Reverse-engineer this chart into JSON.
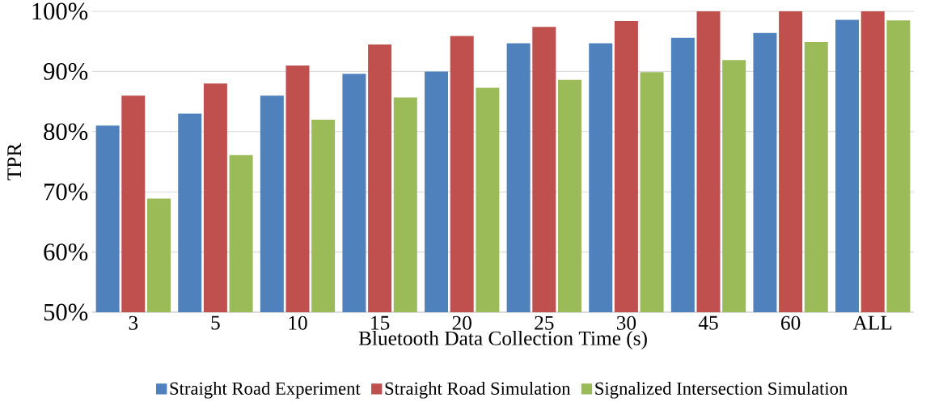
{
  "chart_data": {
    "type": "bar",
    "xlabel": "Bluetooth Data Collection Time (s)",
    "ylabel": "TPR",
    "categories": [
      "3",
      "5",
      "10",
      "15",
      "20",
      "25",
      "30",
      "45",
      "60",
      "ALL"
    ],
    "series": [
      {
        "name": "Straight Road Experiment",
        "color": "#4f81bd",
        "values": [
          81,
          83,
          86,
          89.6,
          90,
          94.7,
          94.7,
          95.6,
          96.4,
          98.6
        ]
      },
      {
        "name": "Straight Road Simulation",
        "color": "#c0504d",
        "values": [
          86,
          88,
          91,
          94.5,
          95.9,
          97.4,
          98.4,
          100,
          100,
          100
        ]
      },
      {
        "name": "Signalized Intersection Simulation",
        "color": "#9bbb59",
        "values": [
          68.9,
          76.1,
          82,
          85.7,
          87.3,
          88.6,
          89.9,
          91.9,
          94.9,
          98.5
        ]
      }
    ],
    "ylim": [
      50,
      100
    ],
    "yticks": [
      {
        "value": 50,
        "label": "50%"
      },
      {
        "value": 60,
        "label": "60%"
      },
      {
        "value": 70,
        "label": "70%"
      },
      {
        "value": 80,
        "label": "80%"
      },
      {
        "value": 90,
        "label": "90%"
      },
      {
        "value": 100,
        "label": "100%"
      }
    ],
    "grid": "y",
    "legend": "bottom"
  }
}
